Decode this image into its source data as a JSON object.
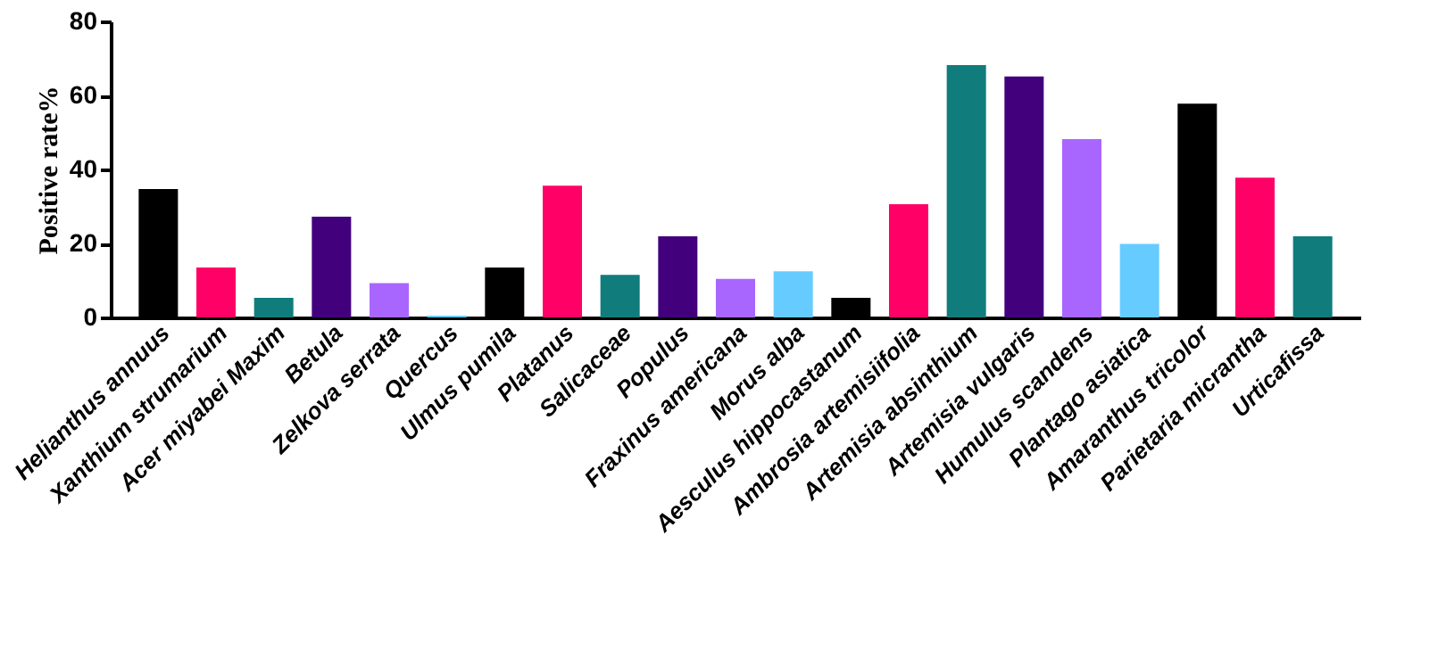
{
  "chart_data": {
    "type": "bar",
    "ylabel": "Positive rate%",
    "categories": [
      "Helianthus annuus",
      "Xanthium strumarium",
      "Acer miyabei Maxim",
      "Betula",
      "Zelkova serrata",
      "Quercus",
      "Ulmus pumila",
      "Platanus",
      "Salicaceae",
      "Populus",
      "Fraxinus americana",
      "Morus alba",
      "Aesculus hippocastanum",
      "Ambrosia artemisiifolia",
      "Artemisia absinthium",
      "Artemisia vulgaris",
      "Humulus scandens",
      "Plantago asiatica",
      "Amaranthus tricolor",
      "Parietaria micrantha",
      "Urticafissa"
    ],
    "values": [
      34.7,
      13.5,
      5.3,
      27.2,
      9.3,
      0.5,
      13.5,
      35.6,
      11.5,
      21.9,
      10.4,
      12.5,
      5.3,
      30.6,
      68.2,
      65.1,
      48.2,
      19.9,
      57.8,
      37.8,
      21.9
    ],
    "colors": [
      "#000000",
      "#ff0066",
      "#107c7c",
      "#42007c",
      "#a966ff",
      "#66ccff",
      "#000000",
      "#ff0066",
      "#107c7c",
      "#42007c",
      "#a966ff",
      "#66ccff",
      "#000000",
      "#ff0066",
      "#107c7c",
      "#42007c",
      "#a966ff",
      "#66ccff",
      "#000000",
      "#ff0066",
      "#107c7c"
    ],
    "ylim": [
      0,
      80
    ],
    "yticks": [
      0,
      20,
      40,
      60,
      80
    ],
    "grid": false
  }
}
